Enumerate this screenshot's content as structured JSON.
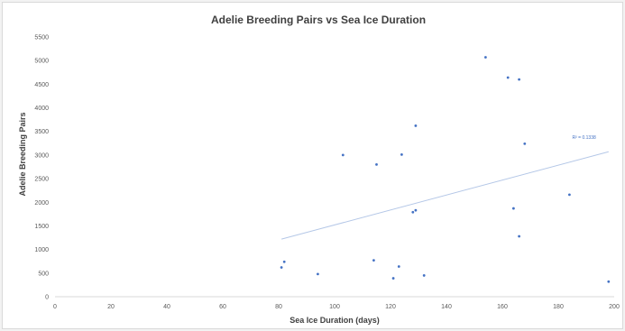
{
  "chart_data": {
    "type": "scatter",
    "title": "Adelie Breeding Pairs vs Sea Ice Duration",
    "xlabel": "Sea Ice Duration (days)",
    "ylabel": "Adelie Breeding Pairs",
    "xlim": [
      0,
      200
    ],
    "ylim": [
      0,
      5500
    ],
    "x_ticks": [
      "0",
      "20",
      "40",
      "60",
      "80",
      "100",
      "120",
      "140",
      "160",
      "180",
      "200"
    ],
    "y_ticks": [
      "0",
      "500",
      "1000",
      "1500",
      "2000",
      "2500",
      "3000",
      "3500",
      "4000",
      "4500",
      "5000",
      "5500"
    ],
    "grid": false,
    "series": [
      {
        "points": [
          {
            "x": 81,
            "y": 620
          },
          {
            "x": 82,
            "y": 740
          },
          {
            "x": 94,
            "y": 480
          },
          {
            "x": 103,
            "y": 3000
          },
          {
            "x": 114,
            "y": 770
          },
          {
            "x": 115,
            "y": 2800
          },
          {
            "x": 121,
            "y": 390
          },
          {
            "x": 123,
            "y": 640
          },
          {
            "x": 124,
            "y": 3010
          },
          {
            "x": 128,
            "y": 1790
          },
          {
            "x": 129,
            "y": 1830
          },
          {
            "x": 129,
            "y": 3620
          },
          {
            "x": 132,
            "y": 450
          },
          {
            "x": 154,
            "y": 5070
          },
          {
            "x": 162,
            "y": 4640
          },
          {
            "x": 164,
            "y": 1870
          },
          {
            "x": 166,
            "y": 4600
          },
          {
            "x": 166,
            "y": 1280
          },
          {
            "x": 168,
            "y": 3240
          },
          {
            "x": 184,
            "y": 2160
          },
          {
            "x": 198,
            "y": 320
          }
        ]
      }
    ],
    "trendline": {
      "type": "linear",
      "x_start": 81,
      "y_start": 1220,
      "x_end": 198,
      "y_end": 3070,
      "label": "R² = 0.1338"
    },
    "colors": {
      "marker": "#4472c4",
      "trendline": "#b4c7e7",
      "text": "#404040"
    }
  }
}
